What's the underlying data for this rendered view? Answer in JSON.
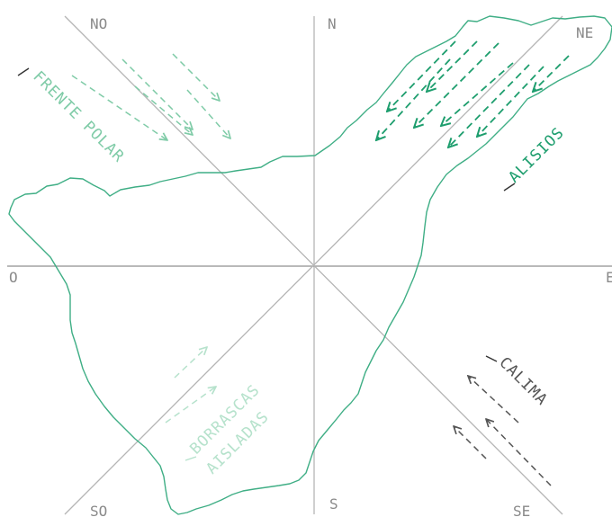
{
  "directions": {
    "N": "N",
    "NE": "NE",
    "E": "E",
    "SE": "SE",
    "S": "S",
    "SO": "SO",
    "O": "O",
    "NO": "NO"
  },
  "winds": {
    "frente_polar": {
      "label": "FRENTE POLAR",
      "direction": "NO",
      "color": "#7fcba7"
    },
    "alisios": {
      "label": "ALISIOS",
      "direction": "NE",
      "color": "#1e9e6e"
    },
    "calima": {
      "label": "CALIMA",
      "direction": "SE",
      "color": "#555555"
    },
    "borrascas": {
      "label_line1": "BORRASCAS",
      "label_line2": "AISLADAS",
      "direction": "SO",
      "color": "#b6e2cc"
    }
  },
  "colors": {
    "island_outline": "#3fae85",
    "axis_lines": "#b5b5b5",
    "cardinal_text": "#8a8a8a"
  }
}
